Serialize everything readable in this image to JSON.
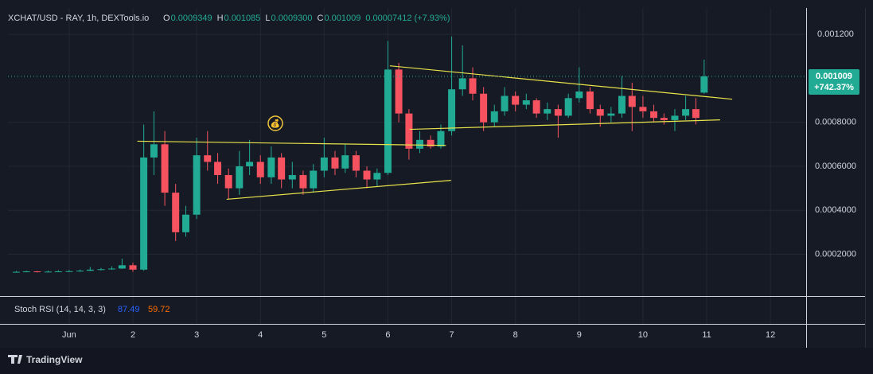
{
  "chart_data": {
    "type": "candlestick",
    "title": "XCHAT/USD - RAY, 1h, DEXTools.io",
    "header_values": [
      {
        "key": "O",
        "text": "0.0009349"
      },
      {
        "key": "H",
        "text": "0.001085"
      },
      {
        "key": "L",
        "text": "0.0009300"
      },
      {
        "key": "C",
        "text": "0.001009"
      }
    ],
    "change_label": "0.00007412 (+7.93%)",
    "last_price_label": "0.001009",
    "last_change_label": "+742.37%",
    "x": [
      0.17,
      0.33,
      0.5,
      0.67,
      0.83,
      1,
      1.17,
      1.33,
      1.5,
      1.67,
      1.83,
      2,
      2.17,
      2.33,
      2.5,
      2.67,
      2.83,
      3,
      3.17,
      3.33,
      3.5,
      3.67,
      3.83,
      4,
      4.17,
      4.33,
      4.5,
      4.67,
      4.83,
      5,
      5.17,
      5.33,
      5.5,
      5.67,
      5.83,
      6,
      6.17,
      6.33,
      6.5,
      6.67,
      6.83,
      7,
      7.17,
      7.33,
      7.5,
      7.67,
      7.83,
      8,
      8.17,
      8.33,
      8.5,
      8.67,
      8.83,
      9,
      9.17,
      9.33,
      9.5,
      9.67,
      9.83,
      10,
      10.17,
      10.33,
      10.5,
      10.67,
      10.83,
      10.96
    ],
    "open": [
      0.000119,
      0.00012,
      0.000122,
      0.00012,
      0.000121,
      0.000122,
      0.000123,
      0.000125,
      0.00013,
      0.000132,
      0.000135,
      0.00015,
      0.00013,
      0.00064,
      0.0007,
      0.00048,
      0.0003,
      0.00038,
      0.00065,
      0.00062,
      0.00056,
      0.0005,
      0.0006,
      0.00062,
      0.00055,
      0.00064,
      0.00054,
      0.00056,
      0.0005,
      0.00058,
      0.00064,
      0.00059,
      0.00065,
      0.00058,
      0.00054,
      0.00057,
      0.00104,
      0.00084,
      0.00068,
      0.00072,
      0.00069,
      0.00076,
      0.00095,
      0.001,
      0.00093,
      0.0008,
      0.00085,
      0.00092,
      0.00088,
      0.0009,
      0.00084,
      0.00086,
      0.00083,
      0.00091,
      0.00094,
      0.00086,
      0.00083,
      0.00084,
      0.00092,
      0.00087,
      0.00085,
      0.00082,
      0.00081,
      0.00083,
      0.00086,
      0.0009349
    ],
    "high": [
      0.000124,
      0.000125,
      0.000124,
      0.000126,
      0.000127,
      0.000128,
      0.00013,
      0.000142,
      0.000138,
      0.000145,
      0.00018,
      0.000162,
      0.00079,
      0.00085,
      0.00076,
      0.00052,
      0.00042,
      0.00073,
      0.00076,
      0.00066,
      0.00059,
      0.00067,
      0.00072,
      0.00065,
      0.00069,
      0.00066,
      0.00062,
      0.00058,
      0.00061,
      0.00073,
      0.00067,
      0.0007,
      0.00067,
      0.0006,
      0.00059,
      0.00117,
      0.00107,
      0.00086,
      0.00076,
      0.00074,
      0.00079,
      0.00119,
      0.00115,
      0.00105,
      0.00096,
      0.00088,
      0.00096,
      0.00094,
      0.00093,
      0.00091,
      0.00089,
      0.00088,
      0.00093,
      0.00105,
      0.00096,
      0.00088,
      0.00087,
      0.00101,
      0.00098,
      0.00092,
      0.00088,
      0.00084,
      0.00086,
      0.00092,
      0.00091,
      0.001085
    ],
    "low": [
      0.000117,
      0.000118,
      0.000117,
      0.000118,
      0.000119,
      0.00012,
      0.000121,
      0.000123,
      0.000126,
      0.000129,
      0.000133,
      0.00012,
      0.000125,
      0.00056,
      0.00042,
      0.00026,
      0.00028,
      0.00036,
      0.00058,
      0.00052,
      0.00045,
      0.00047,
      0.00056,
      0.00052,
      0.00052,
      0.0005,
      0.0005,
      0.00047,
      0.00048,
      0.00055,
      0.00056,
      0.00057,
      0.00055,
      0.0005,
      0.00051,
      0.00056,
      0.0008,
      0.00063,
      0.00066,
      0.00068,
      0.00068,
      0.00074,
      0.00092,
      0.0009,
      0.00076,
      0.00078,
      0.00083,
      0.00085,
      0.00086,
      0.00082,
      0.00081,
      0.00073,
      0.00082,
      0.00089,
      0.00084,
      0.00078,
      0.0008,
      0.00082,
      0.00076,
      0.00082,
      0.0008,
      0.00079,
      0.00076,
      0.00081,
      0.00079,
      0.00093
    ],
    "close": [
      0.00012,
      0.000122,
      0.00012,
      0.000121,
      0.000122,
      0.000123,
      0.000125,
      0.00013,
      0.000132,
      0.000135,
      0.00015,
      0.00013,
      0.00064,
      0.0007,
      0.00048,
      0.0003,
      0.00038,
      0.00065,
      0.00062,
      0.00056,
      0.0005,
      0.0006,
      0.00062,
      0.00055,
      0.00064,
      0.00054,
      0.00056,
      0.0005,
      0.00058,
      0.00064,
      0.00059,
      0.00065,
      0.00058,
      0.00054,
      0.00057,
      0.00104,
      0.00084,
      0.00068,
      0.00072,
      0.00069,
      0.00076,
      0.00095,
      0.001,
      0.00093,
      0.0008,
      0.00085,
      0.00092,
      0.00088,
      0.0009,
      0.00084,
      0.00086,
      0.00083,
      0.00091,
      0.00094,
      0.00086,
      0.00083,
      0.00084,
      0.00092,
      0.00087,
      0.00085,
      0.00082,
      0.00081,
      0.00083,
      0.00086,
      0.00082,
      0.001009
    ],
    "up_color": "#22ab94",
    "down_color": "#f7525f",
    "trendline_color": "#e8e34a",
    "trendlines": [
      {
        "x": [
          2.07,
          6.91
        ],
        "y": [
          0.000714,
          0.000695
        ]
      },
      {
        "x": [
          3.47,
          6.99
        ],
        "y": [
          0.00045,
          0.000536
        ]
      },
      {
        "x": [
          6.03,
          11.4
        ],
        "y": [
          0.001057,
          0.000905
        ]
      },
      {
        "x": [
          6.34,
          11.21
        ],
        "y": [
          0.000768,
          0.000811
        ]
      }
    ],
    "xlim": [
      0.04,
      12.56
    ],
    "ylim": [
      1e-05,
      0.00132
    ],
    "xticks": [
      {
        "value": 1,
        "label": "Jun"
      },
      2,
      3,
      4,
      5,
      6,
      7,
      8,
      9,
      10,
      11,
      12
    ],
    "yticks": [
      {
        "value": 0.0002,
        "label": "0.0002000"
      },
      {
        "value": 0.0004,
        "label": "0.0004000"
      },
      {
        "value": 0.0006,
        "label": "0.0006000"
      },
      {
        "value": 0.0008,
        "label": "0.0008000"
      },
      {
        "value": 0.0012,
        "label": "0.001200"
      }
    ],
    "grid": true,
    "indicator": {
      "name": "Stoch RSI (14, 14, 3, 3)",
      "k": 87.49,
      "k_color": "#2962ff",
      "d": 59.72,
      "d_color": "#ff6d00"
    }
  },
  "footer": {
    "brand": "TradingView"
  }
}
